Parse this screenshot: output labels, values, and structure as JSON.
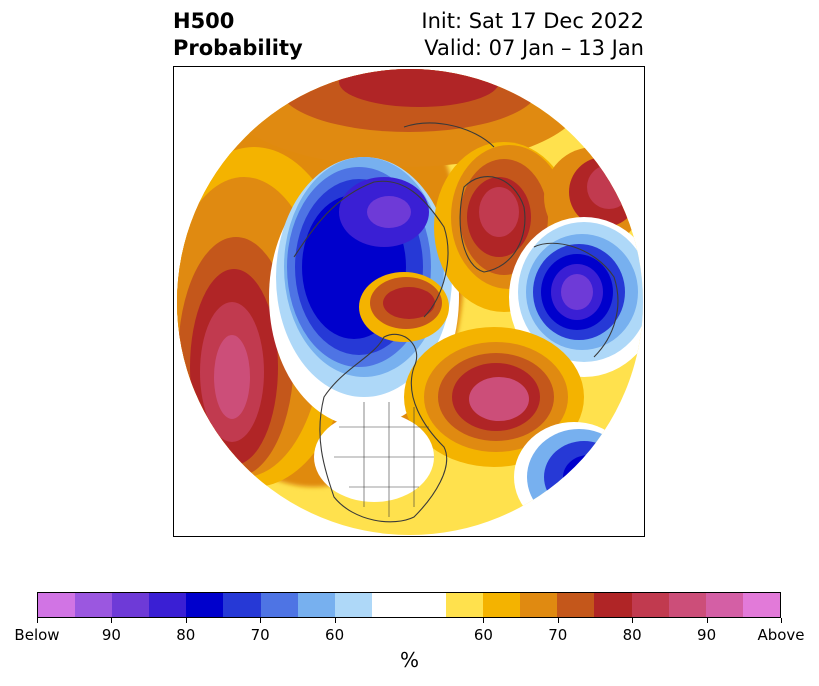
{
  "title": {
    "left_line1": "H500",
    "left_line2": "Probability",
    "right_line1": "Init: Sat 17 Dec 2022",
    "right_line2": "Valid: 07 Jan – 13 Jan"
  },
  "map": {
    "projection": "polar stereographic, Northern Hemisphere",
    "features": [
      "coastlines",
      "country borders",
      "US state borders"
    ]
  },
  "colorbar": {
    "unit_label": "%",
    "colors": [
      "#d174e4",
      "#9b57e0",
      "#6e3ad7",
      "#3a1fd4",
      "#0000cc",
      "#2639d6",
      "#4e74e4",
      "#77b0ef",
      "#aed8f8",
      "#ffffff",
      "#ffffff",
      "#ffe14d",
      "#f4b300",
      "#e08a11",
      "#c4571b",
      "#b02526",
      "#c13a4f",
      "#cc4e79",
      "#d45fa5",
      "#e27ad9"
    ],
    "tick_labels": [
      "Below",
      "90",
      "80",
      "70",
      "60",
      "60",
      "70",
      "80",
      "90",
      "Above"
    ]
  }
}
